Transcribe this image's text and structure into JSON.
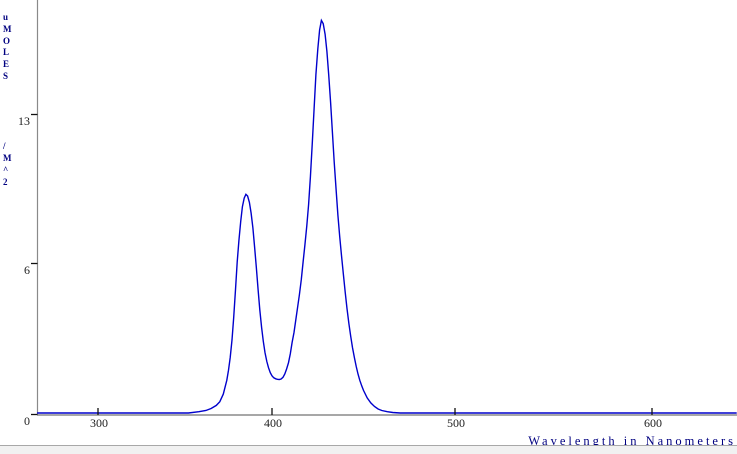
{
  "window": {
    "background": "#ffffff"
  },
  "footer": {
    "strip_color": "#f1f1f1"
  },
  "chart_data": {
    "type": "line",
    "title": "",
    "xlabel": "Wavelength in Nanometers",
    "ylabel": "uMOLES/M^2",
    "x_ticks": [
      300,
      400,
      500,
      600
    ],
    "y_ticks": [
      0,
      6,
      13
    ],
    "xlim": [
      265,
      643
    ],
    "ylim": [
      0,
      18.3
    ],
    "grid": false,
    "legend_position": "none",
    "line_color": "#0000cc",
    "axis_color": "#8a8a8a",
    "tick_color": "#111111",
    "tick_label_color": "#222222",
    "label_color": "#000080",
    "peaks": [
      {
        "x": 385,
        "y": 9.2
      },
      {
        "x": 427,
        "y": 17.35
      }
    ],
    "series": [
      {
        "points": [
          [
            265,
            0
          ],
          [
            300,
            0
          ],
          [
            340,
            0
          ],
          [
            352,
            0
          ],
          [
            358,
            0.05
          ],
          [
            362,
            0.1
          ],
          [
            365,
            0.18
          ],
          [
            368,
            0.3
          ],
          [
            370,
            0.45
          ],
          [
            372,
            0.75
          ],
          [
            374,
            1.3
          ],
          [
            375,
            1.7
          ],
          [
            376,
            2.2
          ],
          [
            377,
            2.9
          ],
          [
            378,
            3.8
          ],
          [
            379,
            4.9
          ],
          [
            380,
            6.0
          ],
          [
            381,
            7.0
          ],
          [
            382,
            7.9
          ],
          [
            383,
            8.6
          ],
          [
            384,
            9.0
          ],
          [
            385,
            9.18
          ],
          [
            386,
            9.1
          ],
          [
            387,
            8.8
          ],
          [
            388,
            8.3
          ],
          [
            389,
            7.6
          ],
          [
            390,
            6.7
          ],
          [
            391,
            5.8
          ],
          [
            392,
            4.9
          ],
          [
            393,
            4.1
          ],
          [
            394,
            3.4
          ],
          [
            395,
            2.85
          ],
          [
            396,
            2.4
          ],
          [
            397,
            2.05
          ],
          [
            398,
            1.8
          ],
          [
            399,
            1.6
          ],
          [
            400,
            1.48
          ],
          [
            401,
            1.4
          ],
          [
            402,
            1.36
          ],
          [
            403,
            1.34
          ],
          [
            404,
            1.33
          ],
          [
            405,
            1.35
          ],
          [
            406,
            1.42
          ],
          [
            407,
            1.55
          ],
          [
            408,
            1.75
          ],
          [
            409,
            2.0
          ],
          [
            410,
            2.35
          ],
          [
            411,
            2.8
          ],
          [
            412,
            3.2
          ],
          [
            413,
            3.7
          ],
          [
            414,
            4.2
          ],
          [
            415,
            4.7
          ],
          [
            416,
            5.3
          ],
          [
            417,
            6.0
          ],
          [
            418,
            6.8
          ],
          [
            419,
            7.7
          ],
          [
            420,
            8.7
          ],
          [
            421,
            10.0
          ],
          [
            422,
            11.6
          ],
          [
            423,
            13.2
          ],
          [
            424,
            14.8
          ],
          [
            425,
            16.0
          ],
          [
            426,
            16.9
          ],
          [
            427,
            17.35
          ],
          [
            428,
            17.2
          ],
          [
            429,
            16.7
          ],
          [
            430,
            15.9
          ],
          [
            431,
            14.8
          ],
          [
            432,
            13.5
          ],
          [
            433,
            12.1
          ],
          [
            434,
            10.7
          ],
          [
            435,
            9.4
          ],
          [
            436,
            8.2
          ],
          [
            437,
            7.2
          ],
          [
            438,
            6.3
          ],
          [
            439,
            5.5
          ],
          [
            440,
            4.8
          ],
          [
            441,
            4.15
          ],
          [
            442,
            3.55
          ],
          [
            443,
            3.05
          ],
          [
            444,
            2.6
          ],
          [
            445,
            2.2
          ],
          [
            446,
            1.85
          ],
          [
            447,
            1.55
          ],
          [
            448,
            1.3
          ],
          [
            449,
            1.08
          ],
          [
            450,
            0.9
          ],
          [
            452,
            0.6
          ],
          [
            454,
            0.4
          ],
          [
            456,
            0.26
          ],
          [
            458,
            0.16
          ],
          [
            460,
            0.1
          ],
          [
            463,
            0.05
          ],
          [
            466,
            0.02
          ],
          [
            470,
            0
          ],
          [
            480,
            0
          ],
          [
            500,
            0
          ],
          [
            550,
            0
          ],
          [
            600,
            0
          ],
          [
            643,
            0
          ]
        ]
      }
    ]
  }
}
